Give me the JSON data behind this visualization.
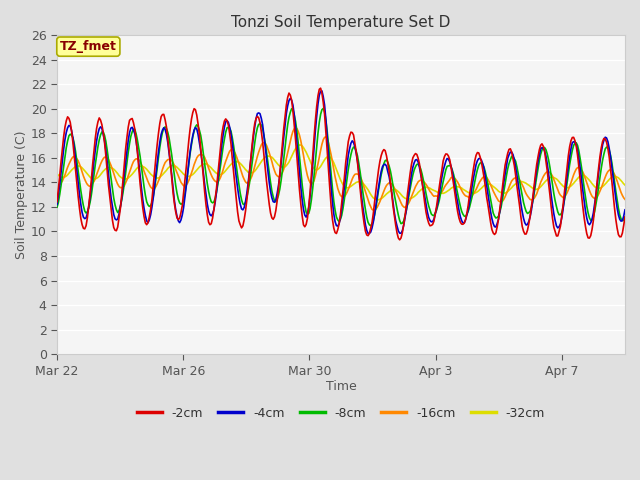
{
  "title": "Tonzi Soil Temperature Set D",
  "xlabel": "Time",
  "ylabel": "Soil Temperature (C)",
  "ylim": [
    0,
    26
  ],
  "yticks": [
    0,
    2,
    4,
    6,
    8,
    10,
    12,
    14,
    16,
    18,
    20,
    22,
    24,
    26
  ],
  "xtick_labels": [
    "Mar 22",
    "Mar 26",
    "Mar 30",
    "Apr 3",
    "Apr 7"
  ],
  "xtick_positions": [
    0,
    4,
    8,
    12,
    16
  ],
  "xlim": [
    0,
    18
  ],
  "plot_bg_color": "#f5f5f5",
  "fig_bg_color": "#e0e0e0",
  "annotation_label": "TZ_fmet",
  "annotation_bg": "#ffff99",
  "annotation_border": "#aaaa00",
  "annotation_color": "#880000",
  "series_colors": {
    "-2cm": "#dd0000",
    "-4cm": "#0000cc",
    "-8cm": "#00bb00",
    "-16cm": "#ff8800",
    "-32cm": "#dddd00"
  },
  "legend_entries": [
    "-2cm",
    "-4cm",
    "-8cm",
    "-16cm",
    "-32cm"
  ],
  "grid_color": "#dddddd",
  "linewidth": 1.2
}
